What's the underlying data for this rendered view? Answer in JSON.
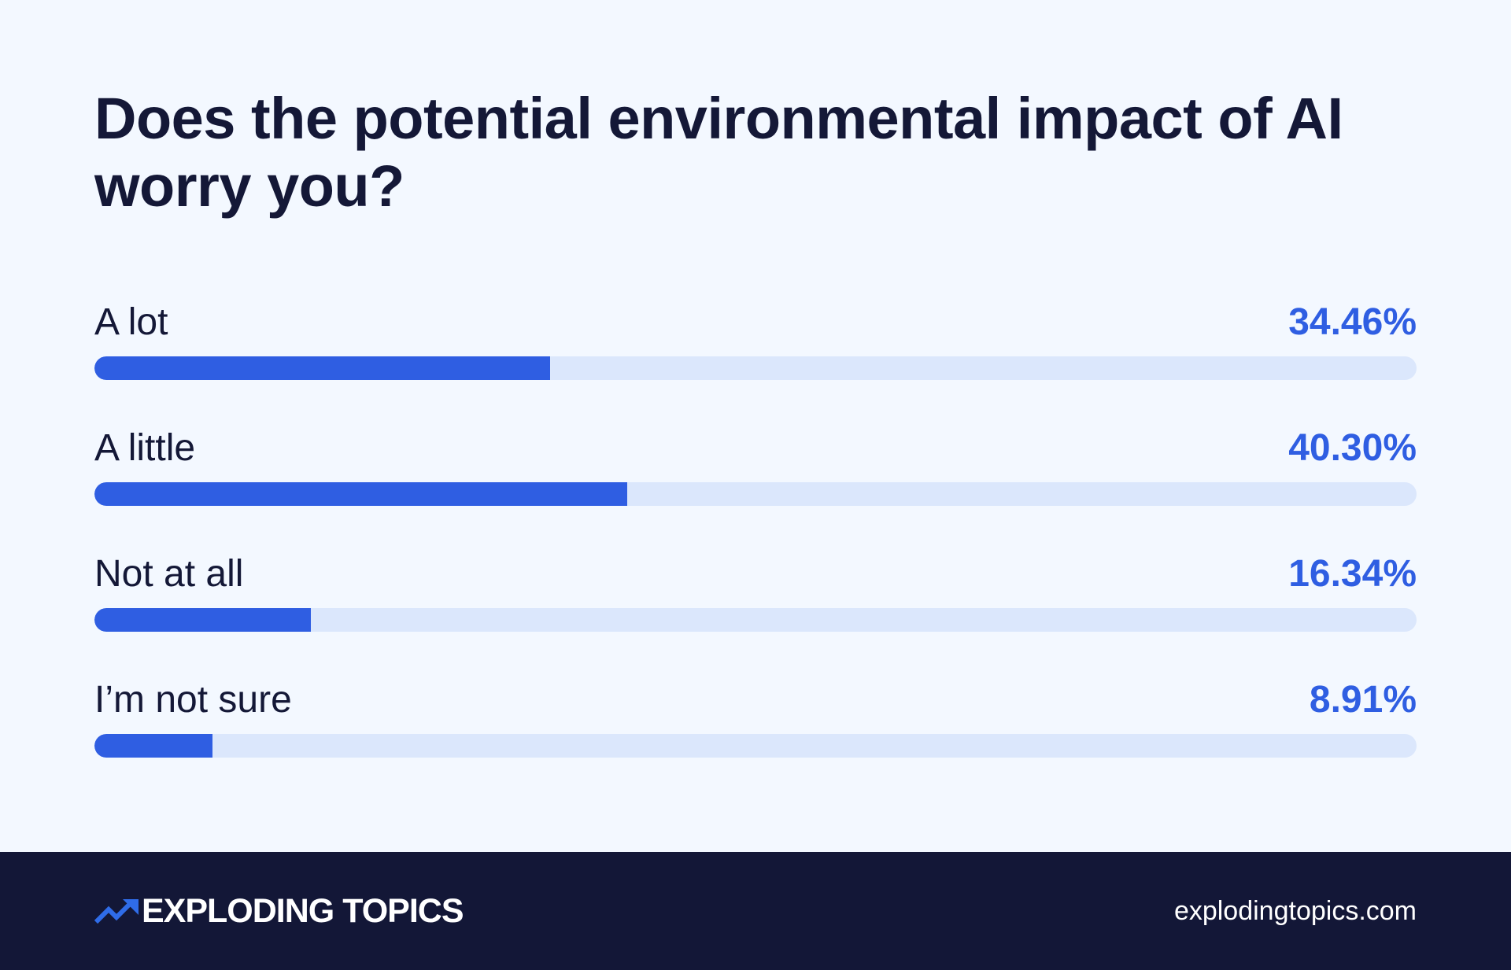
{
  "chart_data": {
    "type": "bar",
    "orientation": "horizontal",
    "title": "Does the potential environmental impact of AI worry you?",
    "categories": [
      "A lot",
      "A little",
      "Not at all",
      "I’m not sure"
    ],
    "values": [
      34.46,
      40.3,
      16.34,
      8.91
    ],
    "value_labels": [
      "34.46%",
      "40.30%",
      "16.34%",
      "8.91%"
    ],
    "xlim": [
      0,
      100
    ],
    "unit": "%",
    "grid": false,
    "legend": "none"
  },
  "footer": {
    "brand_name": "EXPLODING TOPICS",
    "brand_icon": "trending-arrow-icon",
    "url": "explodingtopics.com"
  },
  "colors": {
    "background": "#f3f8ff",
    "title_text": "#141837",
    "bar_fill": "#2f5ee2",
    "bar_track": "#dbe7fc",
    "value_text": "#2f5ee2",
    "footer_background": "#131737",
    "footer_text": "#ffffff",
    "icon": "#2f6ce8"
  }
}
